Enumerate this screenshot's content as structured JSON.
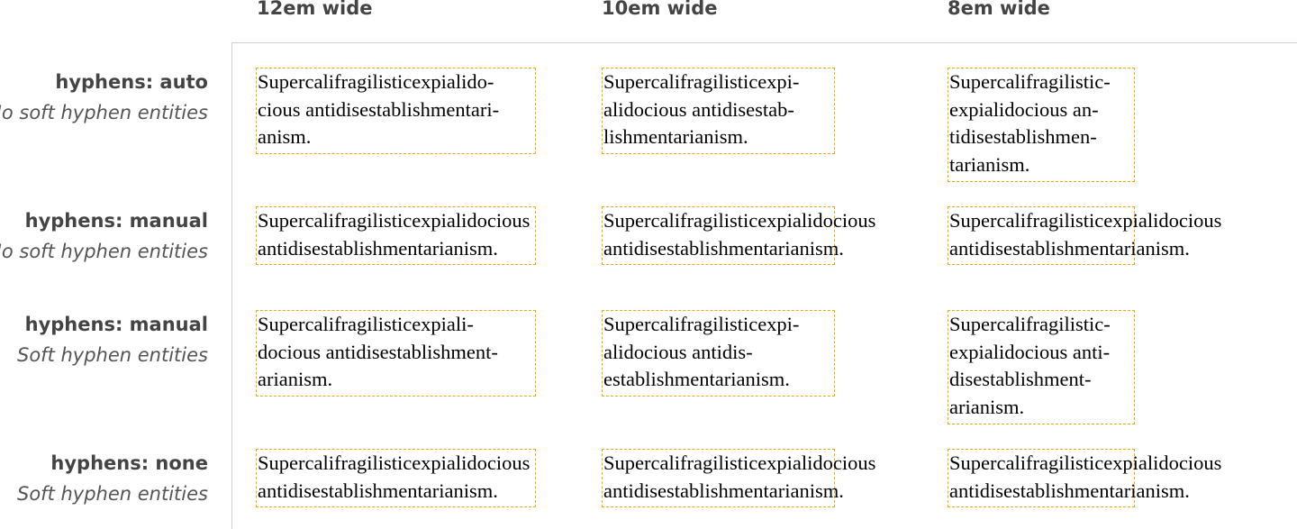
{
  "columns": [
    "12em wide",
    "10em wide",
    "8em wide"
  ],
  "rows": [
    {
      "property": "hyphens: auto",
      "note": "No soft hyphen entities",
      "samples": [
        [
          "Supercalifragilisticexpialido-",
          "cious antidisestablishmentari-",
          "anism."
        ],
        [
          "Supercalifragilisticexpi-",
          "alidocious antidisestab-",
          "lishmentarianism."
        ],
        [
          "Supercalifragilistic-",
          "expialidocious an-",
          "tidisestablishmen-",
          "tarianism."
        ]
      ]
    },
    {
      "property": "hyphens: manual",
      "note": "No soft hyphen entities",
      "samples": [
        [
          "Supercalifragilisticexpialidocious",
          "antidisestablishmentarianism."
        ],
        [
          "Supercalifragilisticexpialidocious",
          "antidisestablishmentarianism."
        ],
        [
          "Supercalifragilisticexpialidocious",
          "antidisestablishmentarianism."
        ]
      ]
    },
    {
      "property": "hyphens: manual",
      "note": "Soft hyphen entities",
      "samples": [
        [
          "Supercalifragilisticexpiali-",
          "docious antidisestablishment-",
          "arianism."
        ],
        [
          "Supercalifragilisticexpi-",
          "alidocious antidis-",
          "establishmentarianism."
        ],
        [
          "Supercalifragilistic-",
          "expialidocious anti-",
          "disestablishment-",
          "arianism."
        ]
      ]
    },
    {
      "property": "hyphens: none",
      "note": "Soft hyphen entities",
      "samples": [
        [
          "Supercalifragilisticexpialidocious",
          "antidisestablishmentarianism."
        ],
        [
          "Supercalifragilisticexpialidocious",
          "antidisestablishmentarianism."
        ],
        [
          "Supercalifragilisticexpialidocious",
          "antidisestablishmentarianism."
        ]
      ]
    }
  ],
  "colors": {
    "border": "#f5a800",
    "label": "#444444",
    "rule": "#cfcfcf"
  }
}
